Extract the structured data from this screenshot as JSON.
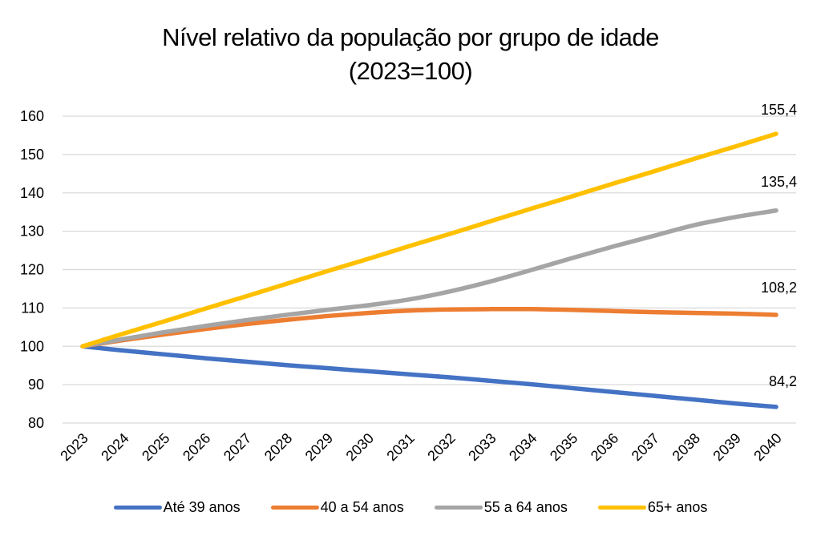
{
  "chart_data": {
    "type": "line",
    "title": "Nível relativo da população por grupo de idade",
    "subtitle": "(2023=100)",
    "xlabel": "",
    "ylabel": "",
    "ylim": [
      80,
      160
    ],
    "yticks": [
      "160",
      "150",
      "140",
      "130",
      "120",
      "110",
      "100",
      "90",
      "80"
    ],
    "ytick_values": [
      160,
      150,
      140,
      130,
      120,
      110,
      100,
      90,
      80
    ],
    "grid": true,
    "legend_position": "bottom",
    "x": [
      "2023",
      "2024",
      "2025",
      "2026",
      "2027",
      "2028",
      "2029",
      "2030",
      "2031",
      "2032",
      "2033",
      "2034",
      "2035",
      "2036",
      "2037",
      "2038",
      "2039",
      "2040"
    ],
    "series": [
      {
        "name": "Até 39 anos",
        "color": "#4472C4",
        "values": [
          100,
          98.9,
          97.9,
          96.9,
          96.0,
          95.1,
          94.3,
          93.5,
          92.7,
          91.9,
          91.0,
          90.1,
          89.1,
          88.1,
          87.1,
          86.1,
          85.1,
          84.2
        ],
        "end_label": "84,2"
      },
      {
        "name": "40 a 54 anos",
        "color": "#ED7D31",
        "values": [
          100,
          101.6,
          103.1,
          104.5,
          105.8,
          106.9,
          107.9,
          108.7,
          109.3,
          109.6,
          109.7,
          109.7,
          109.5,
          109.2,
          108.9,
          108.7,
          108.5,
          108.2
        ],
        "end_label": "108,2"
      },
      {
        "name": "55 a 64 anos",
        "color": "#A5A5A5",
        "values": [
          100,
          101.9,
          103.7,
          105.3,
          106.8,
          108.2,
          109.5,
          110.7,
          112.2,
          114.3,
          116.9,
          119.9,
          123.0,
          126.0,
          128.8,
          131.6,
          133.7,
          135.4
        ],
        "end_label": "135,4"
      },
      {
        "name": "65+ anos",
        "color": "#FFC000",
        "values": [
          100,
          103.3,
          106.5,
          109.8,
          113.0,
          116.3,
          119.6,
          122.8,
          126.1,
          129.3,
          132.6,
          135.9,
          139.1,
          142.4,
          145.6,
          148.9,
          152.1,
          155.4
        ],
        "end_label": "155,4"
      }
    ]
  }
}
